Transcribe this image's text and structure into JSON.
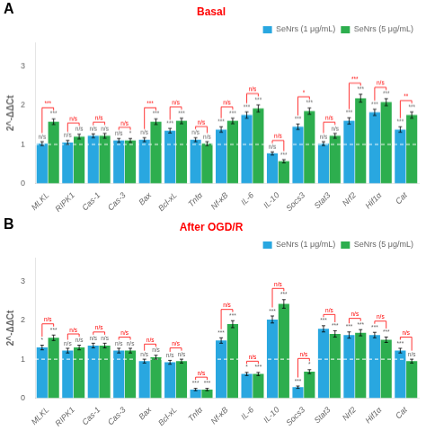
{
  "chart_data": [
    {
      "type": "bar",
      "panel_label": "A",
      "title": "Basal",
      "title_color": "red",
      "categories": [
        "MLKL",
        "RIPK1",
        "Cas-1",
        "Cas-3",
        "Bax",
        "Bcl-xL",
        "Tnfα",
        "Nf-κB",
        "IL-6",
        "IL-10",
        "Socs3",
        "Stat3",
        "Nrf2",
        "Hif1α",
        "Cat"
      ],
      "series": [
        {
          "name": "SeNrs (1 μg/mL)",
          "color": "#29A7E0",
          "values": [
            1.02,
            1.05,
            1.22,
            1.1,
            1.12,
            1.35,
            1.12,
            1.38,
            1.75,
            0.77,
            1.45,
            1.02,
            1.6,
            1.82,
            1.38
          ],
          "errors": [
            0.05,
            0.05,
            0.05,
            0.05,
            0.05,
            0.06,
            0.05,
            0.07,
            0.08,
            0.04,
            0.07,
            0.05,
            0.08,
            0.08,
            0.07
          ],
          "annotations": [
            "n/s",
            "n/s",
            "n/s",
            "n/s",
            "n/s",
            "***",
            "n/s",
            "***",
            "***",
            "n/s",
            "***",
            "n/s",
            "***",
            "***",
            "***"
          ]
        },
        {
          "name": "SeNrs (5 μg/mL)",
          "color": "#2DAE4E",
          "values": [
            1.58,
            1.2,
            1.22,
            1.1,
            1.58,
            1.6,
            1.02,
            1.6,
            1.92,
            0.57,
            1.85,
            1.22,
            2.18,
            2.08,
            1.75
          ],
          "errors": [
            0.07,
            0.06,
            0.06,
            0.05,
            0.07,
            0.07,
            0.05,
            0.07,
            0.09,
            0.04,
            0.08,
            0.06,
            0.1,
            0.09,
            0.08
          ],
          "annotations": [
            "***",
            "n/s",
            "n/s",
            "*",
            "***",
            "***",
            "n/s",
            "***",
            "***",
            "***",
            "***",
            "n/s",
            "***",
            "***",
            "***"
          ]
        }
      ],
      "bracket_annotations": [
        "***",
        "n/s",
        "n/s",
        "n/s",
        "***",
        "n/s",
        "n/s",
        "n/s",
        "n/s",
        "n/s",
        "*",
        "n/s",
        "***",
        "n/s",
        "**"
      ],
      "bracket_color": "red",
      "hline": {
        "value": 1.0,
        "color": "white",
        "line_style": "dashed"
      },
      "ylabel": "2^-ΔΔCt",
      "ylim": [
        0,
        3.6
      ],
      "yticks": [
        0,
        1,
        2,
        3
      ],
      "grid": false,
      "legend": "upper right"
    },
    {
      "type": "bar",
      "panel_label": "B",
      "title": "After OGD/R",
      "title_color": "red",
      "categories": [
        "MLKL",
        "RIPK1",
        "Cas-1",
        "Cas-3",
        "Bax",
        "Bcl-xL",
        "Tnfα",
        "Nf-κB",
        "IL-6",
        "IL-10",
        "Socs3",
        "Stat3",
        "Nrf2",
        "Hif1α",
        "Cat"
      ],
      "series": [
        {
          "name": "SeNrs (1 μg/mL)",
          "color": "#29A7E0",
          "values": [
            1.3,
            1.22,
            1.35,
            1.22,
            0.95,
            0.92,
            0.22,
            1.48,
            0.62,
            2.02,
            0.28,
            1.78,
            1.62,
            1.62,
            1.22
          ],
          "errors": [
            0.06,
            0.06,
            0.06,
            0.06,
            0.05,
            0.05,
            0.03,
            0.07,
            0.04,
            0.09,
            0.03,
            0.08,
            0.08,
            0.07,
            0.06
          ],
          "annotations": [
            "*",
            "n/s",
            "n/s",
            "n/s",
            "n/s",
            "n/s",
            "***",
            "***",
            "*",
            "***",
            "***",
            "***",
            "***",
            "***",
            "***"
          ]
        },
        {
          "name": "SeNrs (5 μg/mL)",
          "color": "#2DAE4E",
          "values": [
            1.55,
            1.3,
            1.35,
            1.22,
            1.05,
            0.95,
            0.22,
            1.9,
            0.62,
            2.42,
            0.68,
            1.65,
            1.68,
            1.5,
            0.95
          ],
          "errors": [
            0.07,
            0.06,
            0.06,
            0.06,
            0.05,
            0.05,
            0.03,
            0.09,
            0.04,
            0.11,
            0.05,
            0.08,
            0.08,
            0.07,
            0.05
          ],
          "annotations": [
            "***",
            "n/s",
            "n/s",
            "n/s",
            "n/s",
            "n/s",
            "***",
            "***",
            "***",
            "***",
            "*",
            "***",
            "***",
            "***",
            "n/s"
          ]
        }
      ],
      "bracket_annotations": [
        "n/s",
        "n/s",
        "n/s",
        "n/s",
        "n/s",
        "n/s",
        "n/s",
        "n/s",
        "n/s",
        "n/s",
        "n/s",
        "n/s",
        "n/s",
        "n/s",
        "n/s"
      ],
      "bracket_color": "red",
      "hline": {
        "value": 1.0,
        "color": "white",
        "line_style": "dashed"
      },
      "ylabel": "2^-ΔΔCt",
      "ylim": [
        0,
        3.6
      ],
      "yticks": [
        0,
        1,
        2,
        3
      ],
      "grid": false,
      "legend": "upper right"
    }
  ]
}
